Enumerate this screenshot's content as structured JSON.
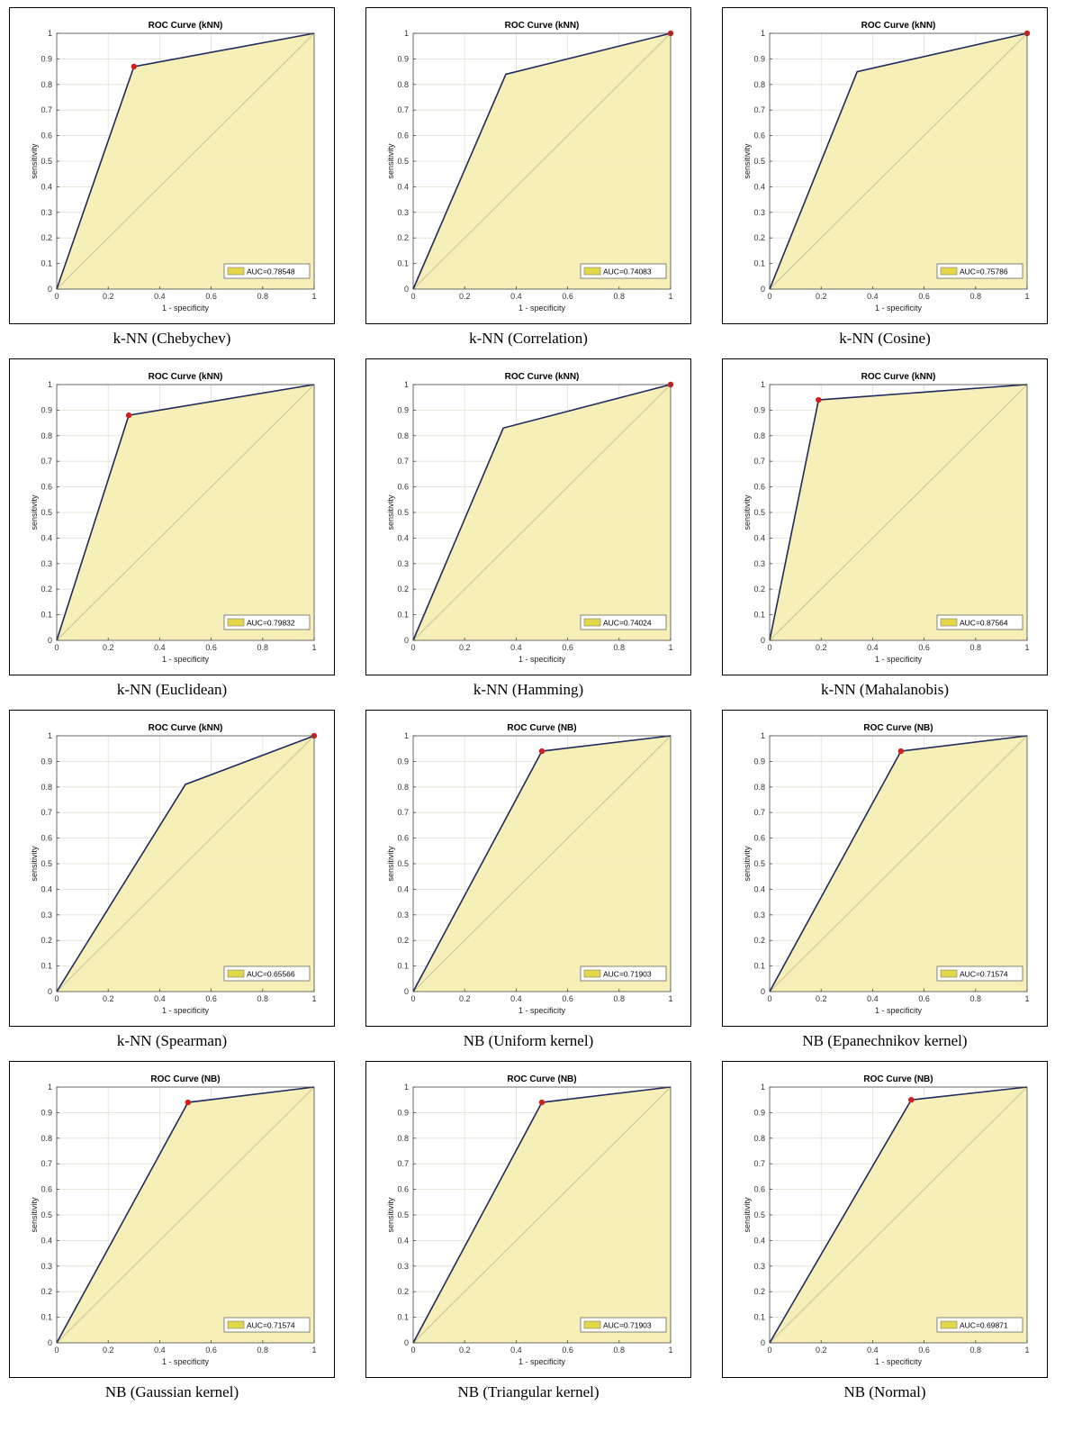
{
  "colors": {
    "fill": "#f5eeb4",
    "curve": "#1f2a5e",
    "point": "#d01f1f",
    "diagonal": "#c9c3a0",
    "grid": "#e2e0d2",
    "legend_swatch": "#e3d84a"
  },
  "chart_data": [
    {
      "type": "area",
      "title": "ROC Curve (kNN)",
      "caption": "k-NN (Chebychev)",
      "xlabel": "1 - specificity",
      "ylabel": "sensitivity",
      "x": [
        0,
        0.3,
        1
      ],
      "y": [
        0,
        0.87,
        1
      ],
      "marker": [
        0.3,
        0.87
      ],
      "auc_label": "AUC=0.78548",
      "xlim": [
        0,
        1
      ],
      "ylim": [
        0,
        1
      ],
      "xticks": [
        "0",
        "0.2",
        "0.4",
        "0.6",
        "0.8",
        "1"
      ],
      "yticks": [
        "0",
        "0.1",
        "0.2",
        "0.3",
        "0.4",
        "0.5",
        "0.6",
        "0.7",
        "0.8",
        "0.9",
        "1"
      ],
      "grid": true,
      "legend": "bottom-right"
    },
    {
      "type": "area",
      "title": "ROC Curve (kNN)",
      "caption": "k-NN (Correlation)",
      "xlabel": "1 - specificity",
      "ylabel": "sensitivity",
      "x": [
        0,
        0.36,
        1
      ],
      "y": [
        0,
        0.84,
        1
      ],
      "marker": [
        1,
        1
      ],
      "auc_label": "AUC=0.74083",
      "xlim": [
        0,
        1
      ],
      "ylim": [
        0,
        1
      ],
      "xticks": [
        "0",
        "0.2",
        "0.4",
        "0.6",
        "0.8",
        "1"
      ],
      "yticks": [
        "0",
        "0.1",
        "0.2",
        "0.3",
        "0.4",
        "0.5",
        "0.6",
        "0.7",
        "0.8",
        "0.9",
        "1"
      ],
      "grid": true,
      "legend": "bottom-right"
    },
    {
      "type": "area",
      "title": "ROC Curve (kNN)",
      "caption": "k-NN (Cosine)",
      "xlabel": "1 - specificity",
      "ylabel": "sensitivity",
      "x": [
        0,
        0.34,
        1
      ],
      "y": [
        0,
        0.85,
        1
      ],
      "marker": [
        1,
        1
      ],
      "auc_label": "AUC=0.75786",
      "xlim": [
        0,
        1
      ],
      "ylim": [
        0,
        1
      ],
      "xticks": [
        "0",
        "0.2",
        "0.4",
        "0.6",
        "0.8",
        "1"
      ],
      "yticks": [
        "0",
        "0.1",
        "0.2",
        "0.3",
        "0.4",
        "0.5",
        "0.6",
        "0.7",
        "0.8",
        "0.9",
        "1"
      ],
      "grid": true,
      "legend": "bottom-right"
    },
    {
      "type": "area",
      "title": "ROC Curve (kNN)",
      "caption": "k-NN (Euclidean)",
      "xlabel": "1 - specificity",
      "ylabel": "sensitivity",
      "x": [
        0,
        0.28,
        1
      ],
      "y": [
        0,
        0.88,
        1
      ],
      "marker": [
        0.28,
        0.88
      ],
      "auc_label": "AUC=0.79832",
      "xlim": [
        0,
        1
      ],
      "ylim": [
        0,
        1
      ],
      "xticks": [
        "0",
        "0.2",
        "0.4",
        "0.6",
        "0.8",
        "1"
      ],
      "yticks": [
        "0",
        "0.1",
        "0.2",
        "0.3",
        "0.4",
        "0.5",
        "0.6",
        "0.7",
        "0.8",
        "0.9",
        "1"
      ],
      "grid": true,
      "legend": "bottom-right"
    },
    {
      "type": "area",
      "title": "ROC Curve (kNN)",
      "caption": "k-NN (Hamming)",
      "xlabel": "1 - specificity",
      "ylabel": "sensitivity",
      "x": [
        0,
        0.35,
        1
      ],
      "y": [
        0,
        0.83,
        1
      ],
      "marker": [
        1,
        1
      ],
      "auc_label": "AUC=0.74024",
      "xlim": [
        0,
        1
      ],
      "ylim": [
        0,
        1
      ],
      "xticks": [
        "0",
        "0.2",
        "0.4",
        "0.6",
        "0.8",
        "1"
      ],
      "yticks": [
        "0",
        "0.1",
        "0.2",
        "0.3",
        "0.4",
        "0.5",
        "0.6",
        "0.7",
        "0.8",
        "0.9",
        "1"
      ],
      "grid": true,
      "legend": "bottom-right"
    },
    {
      "type": "area",
      "title": "ROC Curve (kNN)",
      "caption": "k-NN (Mahalanobis)",
      "xlabel": "1 - specificity",
      "ylabel": "sensitivity",
      "x": [
        0,
        0.19,
        1
      ],
      "y": [
        0,
        0.94,
        1
      ],
      "marker": [
        0.19,
        0.94
      ],
      "auc_label": "AUC=0.87564",
      "xlim": [
        0,
        1
      ],
      "ylim": [
        0,
        1
      ],
      "xticks": [
        "0",
        "0.2",
        "0.4",
        "0.6",
        "0.8",
        "1"
      ],
      "yticks": [
        "0",
        "0.1",
        "0.2",
        "0.3",
        "0.4",
        "0.5",
        "0.6",
        "0.7",
        "0.8",
        "0.9",
        "1"
      ],
      "grid": true,
      "legend": "bottom-right"
    },
    {
      "type": "area",
      "title": "ROC Curve (kNN)",
      "caption": "k-NN (Spearman)",
      "xlabel": "1 - specificity",
      "ylabel": "sensitivity",
      "x": [
        0,
        0.5,
        1
      ],
      "y": [
        0,
        0.81,
        1
      ],
      "marker": [
        1,
        1
      ],
      "auc_label": "AUC=0.65566",
      "xlim": [
        0,
        1
      ],
      "ylim": [
        0,
        1
      ],
      "xticks": [
        "0",
        "0.2",
        "0.4",
        "0.6",
        "0.8",
        "1"
      ],
      "yticks": [
        "0",
        "0.1",
        "0.2",
        "0.3",
        "0.4",
        "0.5",
        "0.6",
        "0.7",
        "0.8",
        "0.9",
        "1"
      ],
      "grid": true,
      "legend": "bottom-right"
    },
    {
      "type": "area",
      "title": "ROC Curve (NB)",
      "caption": "NB (Uniform kernel)",
      "xlabel": "1 - specificity",
      "ylabel": "sensitivity",
      "x": [
        0,
        0.5,
        1
      ],
      "y": [
        0,
        0.94,
        1
      ],
      "marker": [
        0.5,
        0.94
      ],
      "auc_label": "AUC=0.71903",
      "xlim": [
        0,
        1
      ],
      "ylim": [
        0,
        1
      ],
      "xticks": [
        "0",
        "0.2",
        "0.4",
        "0.6",
        "0.8",
        "1"
      ],
      "yticks": [
        "0",
        "0.1",
        "0.2",
        "0.3",
        "0.4",
        "0.5",
        "0.6",
        "0.7",
        "0.8",
        "0.9",
        "1"
      ],
      "grid": true,
      "legend": "bottom-right"
    },
    {
      "type": "area",
      "title": "ROC Curve (NB)",
      "caption": "NB (Epanechnikov kernel)",
      "xlabel": "1 - specificity",
      "ylabel": "sensitivity",
      "x": [
        0,
        0.51,
        1
      ],
      "y": [
        0,
        0.94,
        1
      ],
      "marker": [
        0.51,
        0.94
      ],
      "auc_label": "AUC=0.71574",
      "xlim": [
        0,
        1
      ],
      "ylim": [
        0,
        1
      ],
      "xticks": [
        "0",
        "0.2",
        "0.4",
        "0.6",
        "0.8",
        "1"
      ],
      "yticks": [
        "0",
        "0.1",
        "0.2",
        "0.3",
        "0.4",
        "0.5",
        "0.6",
        "0.7",
        "0.8",
        "0.9",
        "1"
      ],
      "grid": true,
      "legend": "bottom-right"
    },
    {
      "type": "area",
      "title": "ROC Curve (NB)",
      "caption": "NB (Gaussian kernel)",
      "xlabel": "1 - specificity",
      "ylabel": "sensitivity",
      "x": [
        0,
        0.51,
        1
      ],
      "y": [
        0,
        0.94,
        1
      ],
      "marker": [
        0.51,
        0.94
      ],
      "auc_label": "AUC=0.71574",
      "xlim": [
        0,
        1
      ],
      "ylim": [
        0,
        1
      ],
      "xticks": [
        "0",
        "0.2",
        "0.4",
        "0.6",
        "0.8",
        "1"
      ],
      "yticks": [
        "0",
        "0.1",
        "0.2",
        "0.3",
        "0.4",
        "0.5",
        "0.6",
        "0.7",
        "0.8",
        "0.9",
        "1"
      ],
      "grid": true,
      "legend": "bottom-right"
    },
    {
      "type": "area",
      "title": "ROC Curve (NB)",
      "caption": "NB (Triangular kernel)",
      "xlabel": "1 - specificity",
      "ylabel": "sensitivity",
      "x": [
        0,
        0.5,
        1
      ],
      "y": [
        0,
        0.94,
        1
      ],
      "marker": [
        0.5,
        0.94
      ],
      "auc_label": "AUC=0.71903",
      "xlim": [
        0,
        1
      ],
      "ylim": [
        0,
        1
      ],
      "xticks": [
        "0",
        "0.2",
        "0.4",
        "0.6",
        "0.8",
        "1"
      ],
      "yticks": [
        "0",
        "0.1",
        "0.2",
        "0.3",
        "0.4",
        "0.5",
        "0.6",
        "0.7",
        "0.8",
        "0.9",
        "1"
      ],
      "grid": true,
      "legend": "bottom-right"
    },
    {
      "type": "area",
      "title": "ROC Curve (NB)",
      "caption": "NB (Normal)",
      "xlabel": "1 - specificity",
      "ylabel": "sensitivity",
      "x": [
        0,
        0.55,
        1
      ],
      "y": [
        0,
        0.95,
        1
      ],
      "marker": [
        0.55,
        0.95
      ],
      "auc_label": "AUC=0.69871",
      "xlim": [
        0,
        1
      ],
      "ylim": [
        0,
        1
      ],
      "xticks": [
        "0",
        "0.2",
        "0.4",
        "0.6",
        "0.8",
        "1"
      ],
      "yticks": [
        "0",
        "0.1",
        "0.2",
        "0.3",
        "0.4",
        "0.5",
        "0.6",
        "0.7",
        "0.8",
        "0.9",
        "1"
      ],
      "grid": true,
      "legend": "bottom-right"
    }
  ]
}
